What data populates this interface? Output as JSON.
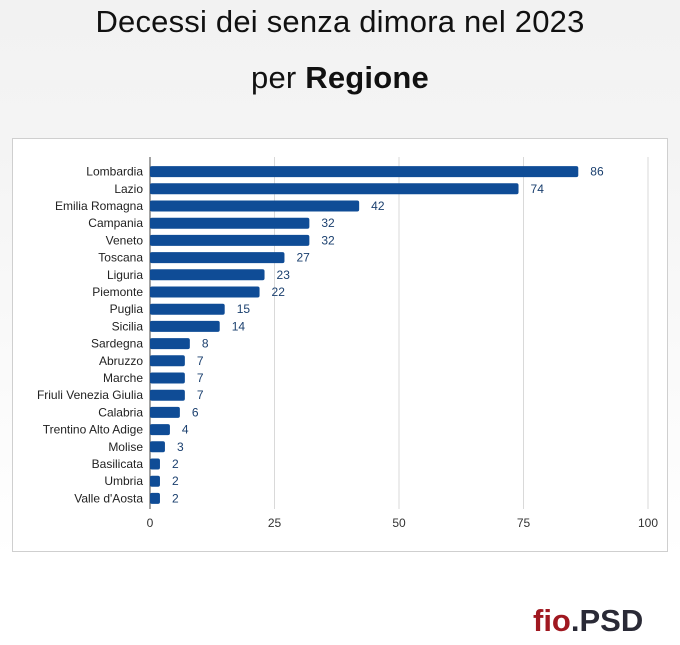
{
  "title": {
    "prefix": "Decessi dei senza dimora nel 2023",
    "line2_normal": "per ",
    "line2_bold": "Regione"
  },
  "logo": {
    "text_a": "fio",
    "text_b": ".PSD"
  },
  "colors": {
    "bar": "#0f4c96",
    "label": "#1a3f6e",
    "grid": "#d9d9d9",
    "axis": "#444444"
  },
  "chart_data": {
    "type": "bar",
    "orientation": "horizontal",
    "categories": [
      "Lombardia",
      "Lazio",
      "Emilia Romagna",
      "Campania",
      "Veneto",
      "Toscana",
      "Liguria",
      "Piemonte",
      "Puglia",
      "Sicilia",
      "Sardegna",
      "Abruzzo",
      "Marche",
      "Friuli Venezia Giulia",
      "Calabria",
      "Trentino Alto Adige",
      "Molise",
      "Basilicata",
      "Umbria",
      "Valle d'Aosta"
    ],
    "values": [
      86,
      74,
      42,
      32,
      32,
      27,
      23,
      22,
      15,
      14,
      8,
      7,
      7,
      7,
      6,
      4,
      3,
      2,
      2,
      2
    ],
    "xticks": [
      0,
      25,
      50,
      75,
      100
    ],
    "xlim": [
      0,
      100
    ],
    "grid": true,
    "data_labels": true
  }
}
